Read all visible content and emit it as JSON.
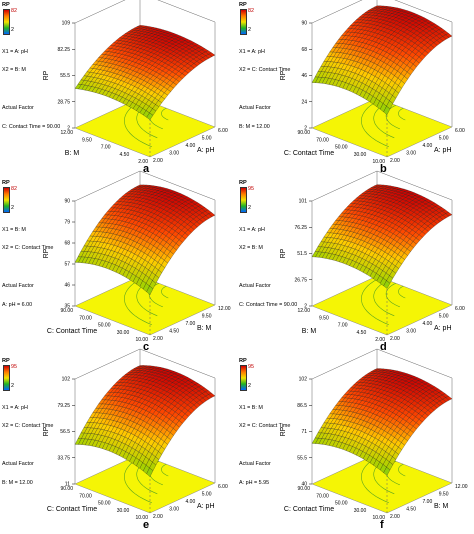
{
  "colors": {
    "floor": "#f5f505",
    "contour": "#5aa51e",
    "gradient": [
      "#0050ff",
      "#00b44a",
      "#a5d200",
      "#ffcc00",
      "#ff4a00",
      "#cc0000"
    ]
  },
  "chart_data": [
    {
      "type": "surface3d",
      "panel": "a",
      "legend": {
        "title": "RP",
        "max": "82",
        "min": "2"
      },
      "factors": [
        "X1 = A: pH",
        "X2 = B: M"
      ],
      "actual_factor_title": "Actual Factor",
      "actual_factor": "C: Contact Time = 90.00",
      "zlabel": "RP",
      "xlabel": "A: pH",
      "ylabel": "B: M",
      "z_ticks": [
        "2",
        "28.75",
        "55.5",
        "82.25",
        "109"
      ],
      "x_ticks": [
        "2.00",
        "3.00",
        "4.00",
        "5.00",
        "6.00"
      ],
      "y_ticks": [
        "2.00",
        "4.50",
        "7.00",
        "9.50",
        "12.00"
      ],
      "zlim": [
        2,
        109
      ],
      "xlim": [
        2,
        6
      ],
      "ylim": [
        2,
        12
      ],
      "surface": {
        "z_min": 18,
        "z_max": 82
      }
    },
    {
      "type": "surface3d",
      "panel": "b",
      "legend": {
        "title": "RP",
        "max": "82",
        "min": "2"
      },
      "factors": [
        "X1 = A: pH",
        "X2 = C: Contact Time"
      ],
      "actual_factor_title": "Actual Factor",
      "actual_factor": "B: M = 12.00",
      "zlabel": "RP",
      "xlabel": "A: pH",
      "ylabel": "C: Contact Time",
      "z_ticks": [
        "2",
        "24",
        "46",
        "68",
        "90"
      ],
      "x_ticks": [
        "2.00",
        "3.00",
        "4.00",
        "5.00",
        "6.00"
      ],
      "y_ticks": [
        "10.00",
        "30.00",
        "50.00",
        "70.00",
        "90.00"
      ],
      "zlim": [
        2,
        90
      ],
      "xlim": [
        2,
        6
      ],
      "ylim": [
        10,
        90
      ],
      "surface": {
        "z_min": 12,
        "z_max": 86
      }
    },
    {
      "type": "surface3d",
      "panel": "c",
      "legend": {
        "title": "RP",
        "max": "82",
        "min": "2"
      },
      "factors": [
        "X1 = B: M",
        "X2 = C: Contact Time"
      ],
      "actual_factor_title": "Actual Factor",
      "actual_factor": "A: pH = 6.00",
      "zlabel": "RP",
      "xlabel": "B: M",
      "ylabel": "C: Contact Time",
      "z_ticks": [
        "35",
        "46",
        "57",
        "68",
        "79",
        "90"
      ],
      "x_ticks": [
        "2.00",
        "4.50",
        "7.00",
        "9.50",
        "12.00"
      ],
      "y_ticks": [
        "10.00",
        "30.00",
        "50.00",
        "70.00",
        "90.00"
      ],
      "zlim": [
        35,
        90
      ],
      "xlim": [
        2,
        12
      ],
      "ylim": [
        10,
        90
      ],
      "surface": {
        "z_min": 40,
        "z_max": 87
      }
    },
    {
      "type": "surface3d",
      "panel": "d",
      "legend": {
        "title": "RP",
        "max": "95",
        "min": "2"
      },
      "factors": [
        "X1 = A: pH",
        "X2 = B: M"
      ],
      "actual_factor_title": "Actual Factor",
      "actual_factor": "C: Contact Time = 90.00",
      "zlabel": "RP",
      "xlabel": "A: pH",
      "ylabel": "B: M",
      "z_ticks": [
        "2",
        "26.75",
        "51.5",
        "76.25",
        "101"
      ],
      "x_ticks": [
        "2.00",
        "3.00",
        "4.00",
        "5.00",
        "6.00"
      ],
      "y_ticks": [
        "2.00",
        "4.50",
        "7.00",
        "9.50",
        "12.00"
      ],
      "zlim": [
        2,
        101
      ],
      "xlim": [
        2,
        6
      ],
      "ylim": [
        2,
        12
      ],
      "surface": {
        "z_min": 20,
        "z_max": 95
      }
    },
    {
      "type": "surface3d",
      "panel": "e",
      "legend": {
        "title": "RP",
        "max": "95",
        "min": "2"
      },
      "factors": [
        "X1 = A: pH",
        "X2 = C: Contact Time"
      ],
      "actual_factor_title": "Actual Factor",
      "actual_factor": "B: M = 12.00",
      "zlabel": "RP",
      "xlabel": "A: pH",
      "ylabel": "C: Contact Time",
      "z_ticks": [
        "11",
        "33.75",
        "56.5",
        "79.25",
        "102"
      ],
      "x_ticks": [
        "2.00",
        "3.00",
        "4.00",
        "5.00",
        "6.00"
      ],
      "y_ticks": [
        "10.00",
        "30.00",
        "50.00",
        "70.00",
        "90.00"
      ],
      "zlim": [
        11,
        102
      ],
      "xlim": [
        2,
        6
      ],
      "ylim": [
        10,
        90
      ],
      "surface": {
        "z_min": 15,
        "z_max": 95
      }
    },
    {
      "type": "surface3d",
      "panel": "f",
      "legend": {
        "title": "RP",
        "max": "95",
        "min": "2"
      },
      "factors": [
        "X1 = B: M",
        "X2 = C: Contact Time"
      ],
      "actual_factor_title": "Actual Factor",
      "actual_factor": "A: pH = 5.95",
      "zlabel": "RP",
      "xlabel": "B: M",
      "ylabel": "C: Contact Time",
      "z_ticks": [
        "40",
        "55.5",
        "71",
        "86.5",
        "102"
      ],
      "x_ticks": [
        "2.00",
        "4.50",
        "7.00",
        "9.50",
        "12.00"
      ],
      "y_ticks": [
        "10.00",
        "30.00",
        "50.00",
        "70.00",
        "90.00"
      ],
      "zlim": [
        40,
        102
      ],
      "xlim": [
        2,
        12
      ],
      "ylim": [
        10,
        90
      ],
      "surface": {
        "z_min": 45,
        "z_max": 95
      }
    }
  ]
}
